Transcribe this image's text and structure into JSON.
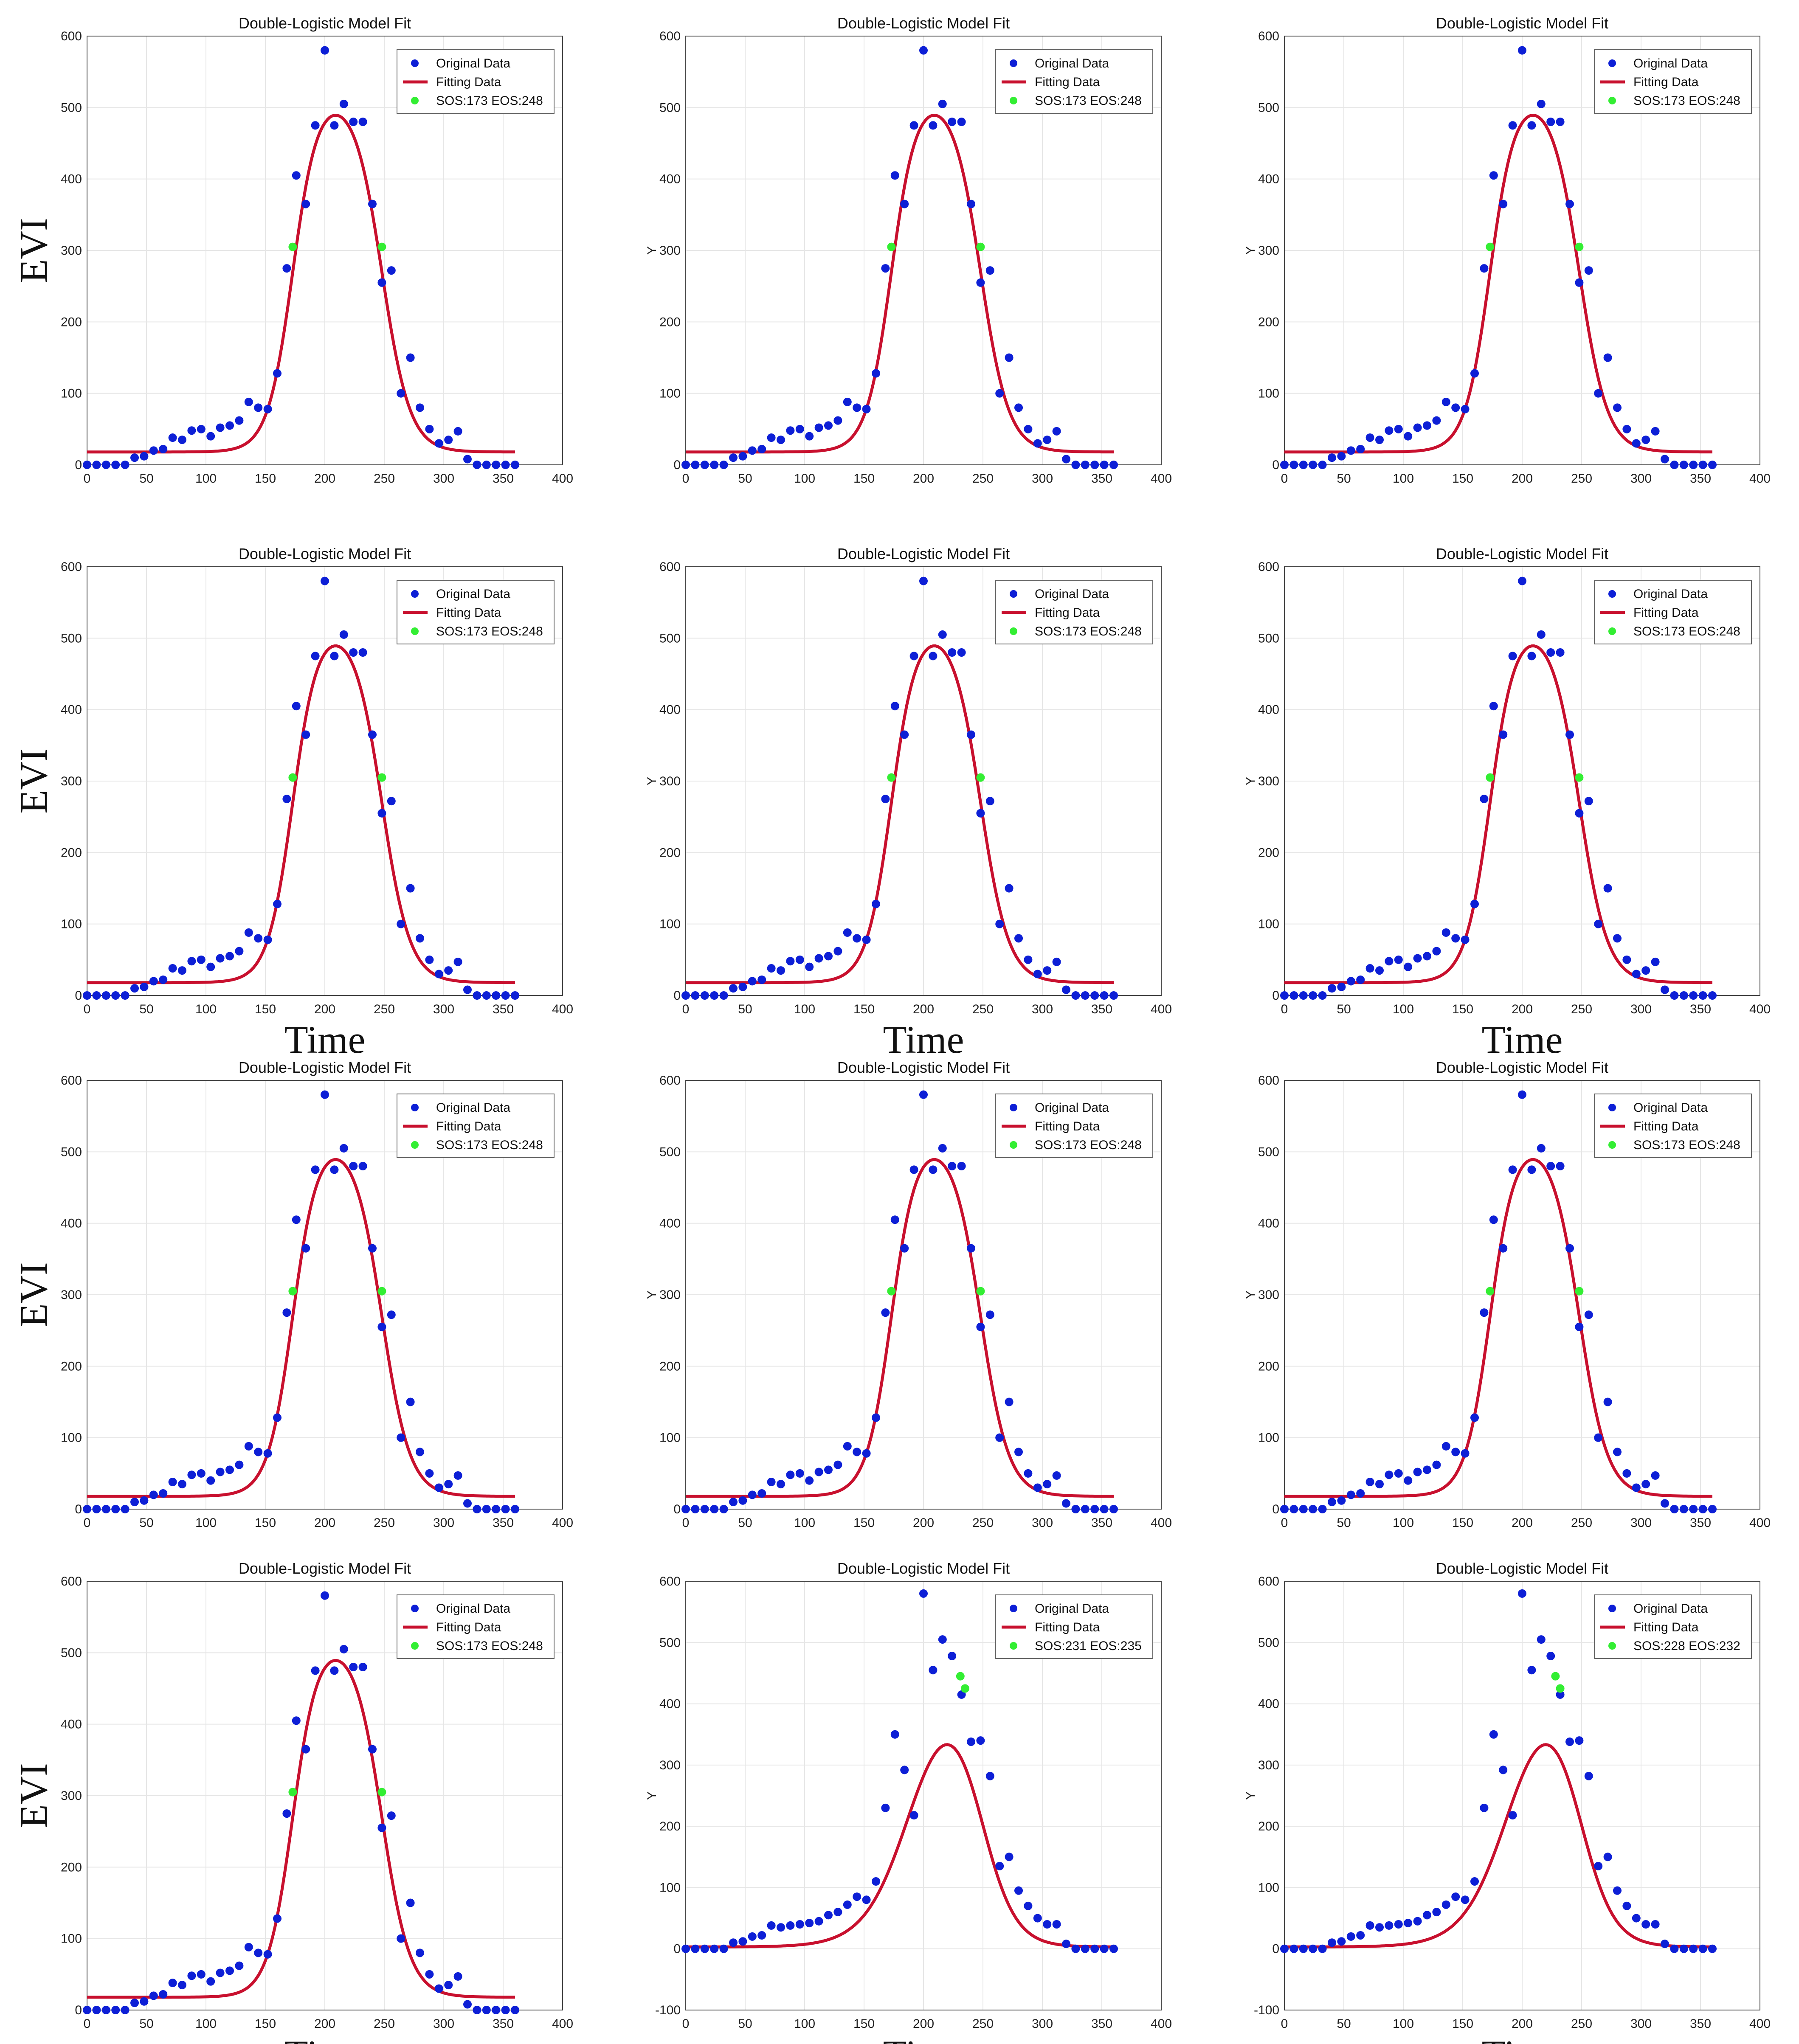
{
  "colors": {
    "original": "#0d1fd6",
    "fitting": "#c8102e",
    "marker": "#33ee33",
    "grid": "#e6e6e6",
    "axis": "#444444"
  },
  "shared_series": {
    "original_x": [
      0,
      8,
      16,
      24,
      32,
      40,
      48,
      56,
      64,
      72,
      80,
      88,
      96,
      104,
      112,
      120,
      128,
      136,
      144,
      152,
      160,
      168,
      176,
      184,
      192,
      200,
      208,
      216,
      224,
      232,
      240,
      248,
      256,
      264,
      272,
      280,
      288,
      296,
      304,
      312,
      320,
      328,
      336,
      344,
      352,
      360
    ],
    "original_y_A": [
      0,
      0,
      0,
      0,
      0,
      10,
      12,
      20,
      22,
      38,
      35,
      48,
      50,
      40,
      52,
      55,
      62,
      88,
      80,
      78,
      128,
      275,
      405,
      365,
      475,
      580,
      475,
      505,
      480,
      480,
      365,
      255,
      272,
      100,
      150,
      80,
      50,
      30,
      35,
      47,
      8,
      0,
      0,
      0,
      0,
      0
    ],
    "original_y_B": [
      0,
      0,
      0,
      0,
      0,
      10,
      12,
      20,
      22,
      38,
      35,
      38,
      40,
      42,
      45,
      55,
      60,
      72,
      85,
      80,
      110,
      230,
      350,
      292,
      218,
      580,
      455,
      505,
      478,
      415,
      338,
      340,
      282,
      135,
      150,
      95,
      70,
      50,
      40,
      40,
      8,
      0,
      0,
      0,
      0,
      0
    ],
    "fit_A": {
      "base": 18,
      "amp": 505,
      "sos": 173,
      "eos": 248,
      "k1": 0.095,
      "k2": 0.085
    },
    "fit_B": {
      "base": 3,
      "amp": 470,
      "sos": 190,
      "eos": 248,
      "k1": 0.052,
      "k2": 0.07
    }
  },
  "chart_data": [
    {
      "type": "scatter",
      "title": "Double-Logistic Model Fit",
      "xlabel": "",
      "ylabel": "EVI",
      "xlim": [
        0,
        400
      ],
      "ylim": [
        0,
        600
      ],
      "xticks": [
        "0",
        "50",
        "100",
        "150",
        "200",
        "250",
        "300",
        "350",
        "400"
      ],
      "yticks": [
        "0",
        "100",
        "200",
        "300",
        "400",
        "500",
        "600"
      ],
      "legend": [
        "Original Data",
        "Fitting Data",
        "SOS:173  EOS:248"
      ],
      "series": "A",
      "markers_x": [
        173,
        248
      ],
      "markers_y": [
        305,
        305
      ]
    },
    {
      "type": "scatter",
      "title": "Double-Logistic Model Fit",
      "xlabel": "",
      "ylabel": "Y",
      "xlim": [
        0,
        400
      ],
      "ylim": [
        0,
        600
      ],
      "xticks": [
        "0",
        "50",
        "100",
        "150",
        "200",
        "250",
        "300",
        "350",
        "400"
      ],
      "yticks": [
        "0",
        "100",
        "200",
        "300",
        "400",
        "500",
        "600"
      ],
      "legend": [
        "Original Data",
        "Fitting Data",
        "SOS:173  EOS:248"
      ],
      "series": "A",
      "markers_x": [
        173,
        248
      ],
      "markers_y": [
        305,
        305
      ]
    },
    {
      "type": "scatter",
      "title": "Double-Logistic Model Fit",
      "xlabel": "",
      "ylabel": "Y",
      "xlim": [
        0,
        400
      ],
      "ylim": [
        0,
        600
      ],
      "xticks": [
        "0",
        "50",
        "100",
        "150",
        "200",
        "250",
        "300",
        "350",
        "400"
      ],
      "yticks": [
        "0",
        "100",
        "200",
        "300",
        "400",
        "500",
        "600"
      ],
      "legend": [
        "Original Data",
        "Fitting Data",
        "SOS:173  EOS:248"
      ],
      "series": "A",
      "markers_x": [
        173,
        248
      ],
      "markers_y": [
        305,
        305
      ]
    },
    {
      "type": "scatter",
      "title": "Double-Logistic Model Fit",
      "xlabel": "Time",
      "ylabel": "EVI",
      "xlim": [
        0,
        400
      ],
      "ylim": [
        0,
        600
      ],
      "xticks": [
        "0",
        "50",
        "100",
        "150",
        "200",
        "250",
        "300",
        "350",
        "400"
      ],
      "yticks": [
        "0",
        "100",
        "200",
        "300",
        "400",
        "500",
        "600"
      ],
      "legend": [
        "Original Data",
        "Fitting Data",
        "SOS:173  EOS:248"
      ],
      "series": "A",
      "markers_x": [
        173,
        248
      ],
      "markers_y": [
        305,
        305
      ]
    },
    {
      "type": "scatter",
      "title": "Double-Logistic Model Fit",
      "xlabel": "Time",
      "ylabel": "Y",
      "xlim": [
        0,
        400
      ],
      "ylim": [
        0,
        600
      ],
      "xticks": [
        "0",
        "50",
        "100",
        "150",
        "200",
        "250",
        "300",
        "350",
        "400"
      ],
      "yticks": [
        "0",
        "100",
        "200",
        "300",
        "400",
        "500",
        "600"
      ],
      "legend": [
        "Original Data",
        "Fitting Data",
        "SOS:173  EOS:248"
      ],
      "series": "A",
      "markers_x": [
        173,
        248
      ],
      "markers_y": [
        305,
        305
      ]
    },
    {
      "type": "scatter",
      "title": "Double-Logistic Model Fit",
      "xlabel": "Time",
      "ylabel": "Y",
      "xlim": [
        0,
        400
      ],
      "ylim": [
        0,
        600
      ],
      "xticks": [
        "0",
        "50",
        "100",
        "150",
        "200",
        "250",
        "300",
        "350",
        "400"
      ],
      "yticks": [
        "0",
        "100",
        "200",
        "300",
        "400",
        "500",
        "600"
      ],
      "legend": [
        "Original Data",
        "Fitting Data",
        "SOS:173  EOS:248"
      ],
      "series": "A",
      "markers_x": [
        173,
        248
      ],
      "markers_y": [
        305,
        305
      ]
    },
    {
      "type": "scatter",
      "title": "Double-Logistic Model Fit",
      "xlabel": "",
      "ylabel": "EVI",
      "xlim": [
        0,
        400
      ],
      "ylim": [
        0,
        600
      ],
      "xticks": [
        "0",
        "50",
        "100",
        "150",
        "200",
        "250",
        "300",
        "350",
        "400"
      ],
      "yticks": [
        "0",
        "100",
        "200",
        "300",
        "400",
        "500",
        "600"
      ],
      "legend": [
        "Original Data",
        "Fitting Data",
        "SOS:173  EOS:248"
      ],
      "series": "A",
      "markers_x": [
        173,
        248
      ],
      "markers_y": [
        305,
        305
      ]
    },
    {
      "type": "scatter",
      "title": "Double-Logistic Model Fit",
      "xlabel": "",
      "ylabel": "Y",
      "xlim": [
        0,
        400
      ],
      "ylim": [
        0,
        600
      ],
      "xticks": [
        "0",
        "50",
        "100",
        "150",
        "200",
        "250",
        "300",
        "350",
        "400"
      ],
      "yticks": [
        "0",
        "100",
        "200",
        "300",
        "400",
        "500",
        "600"
      ],
      "legend": [
        "Original Data",
        "Fitting Data",
        "SOS:173  EOS:248"
      ],
      "series": "A",
      "markers_x": [
        173,
        248
      ],
      "markers_y": [
        305,
        305
      ]
    },
    {
      "type": "scatter",
      "title": "Double-Logistic Model Fit",
      "xlabel": "",
      "ylabel": "Y",
      "xlim": [
        0,
        400
      ],
      "ylim": [
        0,
        600
      ],
      "xticks": [
        "0",
        "50",
        "100",
        "150",
        "200",
        "250",
        "300",
        "350",
        "400"
      ],
      "yticks": [
        "0",
        "100",
        "200",
        "300",
        "400",
        "500",
        "600"
      ],
      "legend": [
        "Original Data",
        "Fitting Data",
        "SOS:173  EOS:248"
      ],
      "series": "A",
      "markers_x": [
        173,
        248
      ],
      "markers_y": [
        305,
        305
      ]
    },
    {
      "type": "scatter",
      "title": "Double-Logistic Model Fit",
      "xlabel": "Time",
      "ylabel": "EVI",
      "xlim": [
        0,
        400
      ],
      "ylim": [
        0,
        600
      ],
      "xticks": [
        "0",
        "50",
        "100",
        "150",
        "200",
        "250",
        "300",
        "350",
        "400"
      ],
      "yticks": [
        "0",
        "100",
        "200",
        "300",
        "400",
        "500",
        "600"
      ],
      "legend": [
        "Original Data",
        "Fitting Data",
        "SOS:173  EOS:248"
      ],
      "series": "A",
      "markers_x": [
        173,
        248
      ],
      "markers_y": [
        305,
        305
      ]
    },
    {
      "type": "scatter",
      "title": "Double-Logistic Model Fit",
      "xlabel": "Time",
      "ylabel": "Y",
      "xlim": [
        0,
        400
      ],
      "ylim": [
        -100,
        600
      ],
      "xticks": [
        "0",
        "50",
        "100",
        "150",
        "200",
        "250",
        "300",
        "350",
        "400"
      ],
      "yticks": [
        "-100",
        "0",
        "100",
        "200",
        "300",
        "400",
        "500",
        "600"
      ],
      "legend": [
        "Original Data",
        "Fitting Data",
        "SOS:231  EOS:235"
      ],
      "series": "B",
      "markers_x": [
        231,
        235
      ],
      "markers_y": [
        445,
        425
      ]
    },
    {
      "type": "scatter",
      "title": "Double-Logistic Model Fit",
      "xlabel": "Time",
      "ylabel": "Y",
      "xlim": [
        0,
        400
      ],
      "ylim": [
        -100,
        600
      ],
      "xticks": [
        "0",
        "50",
        "100",
        "150",
        "200",
        "250",
        "300",
        "350",
        "400"
      ],
      "yticks": [
        "-100",
        "0",
        "100",
        "200",
        "300",
        "400",
        "500",
        "600"
      ],
      "legend": [
        "Original Data",
        "Fitting Data",
        "SOS:228  EOS:232"
      ],
      "series": "B",
      "markers_x": [
        228,
        232
      ],
      "markers_y": [
        445,
        425
      ]
    }
  ]
}
